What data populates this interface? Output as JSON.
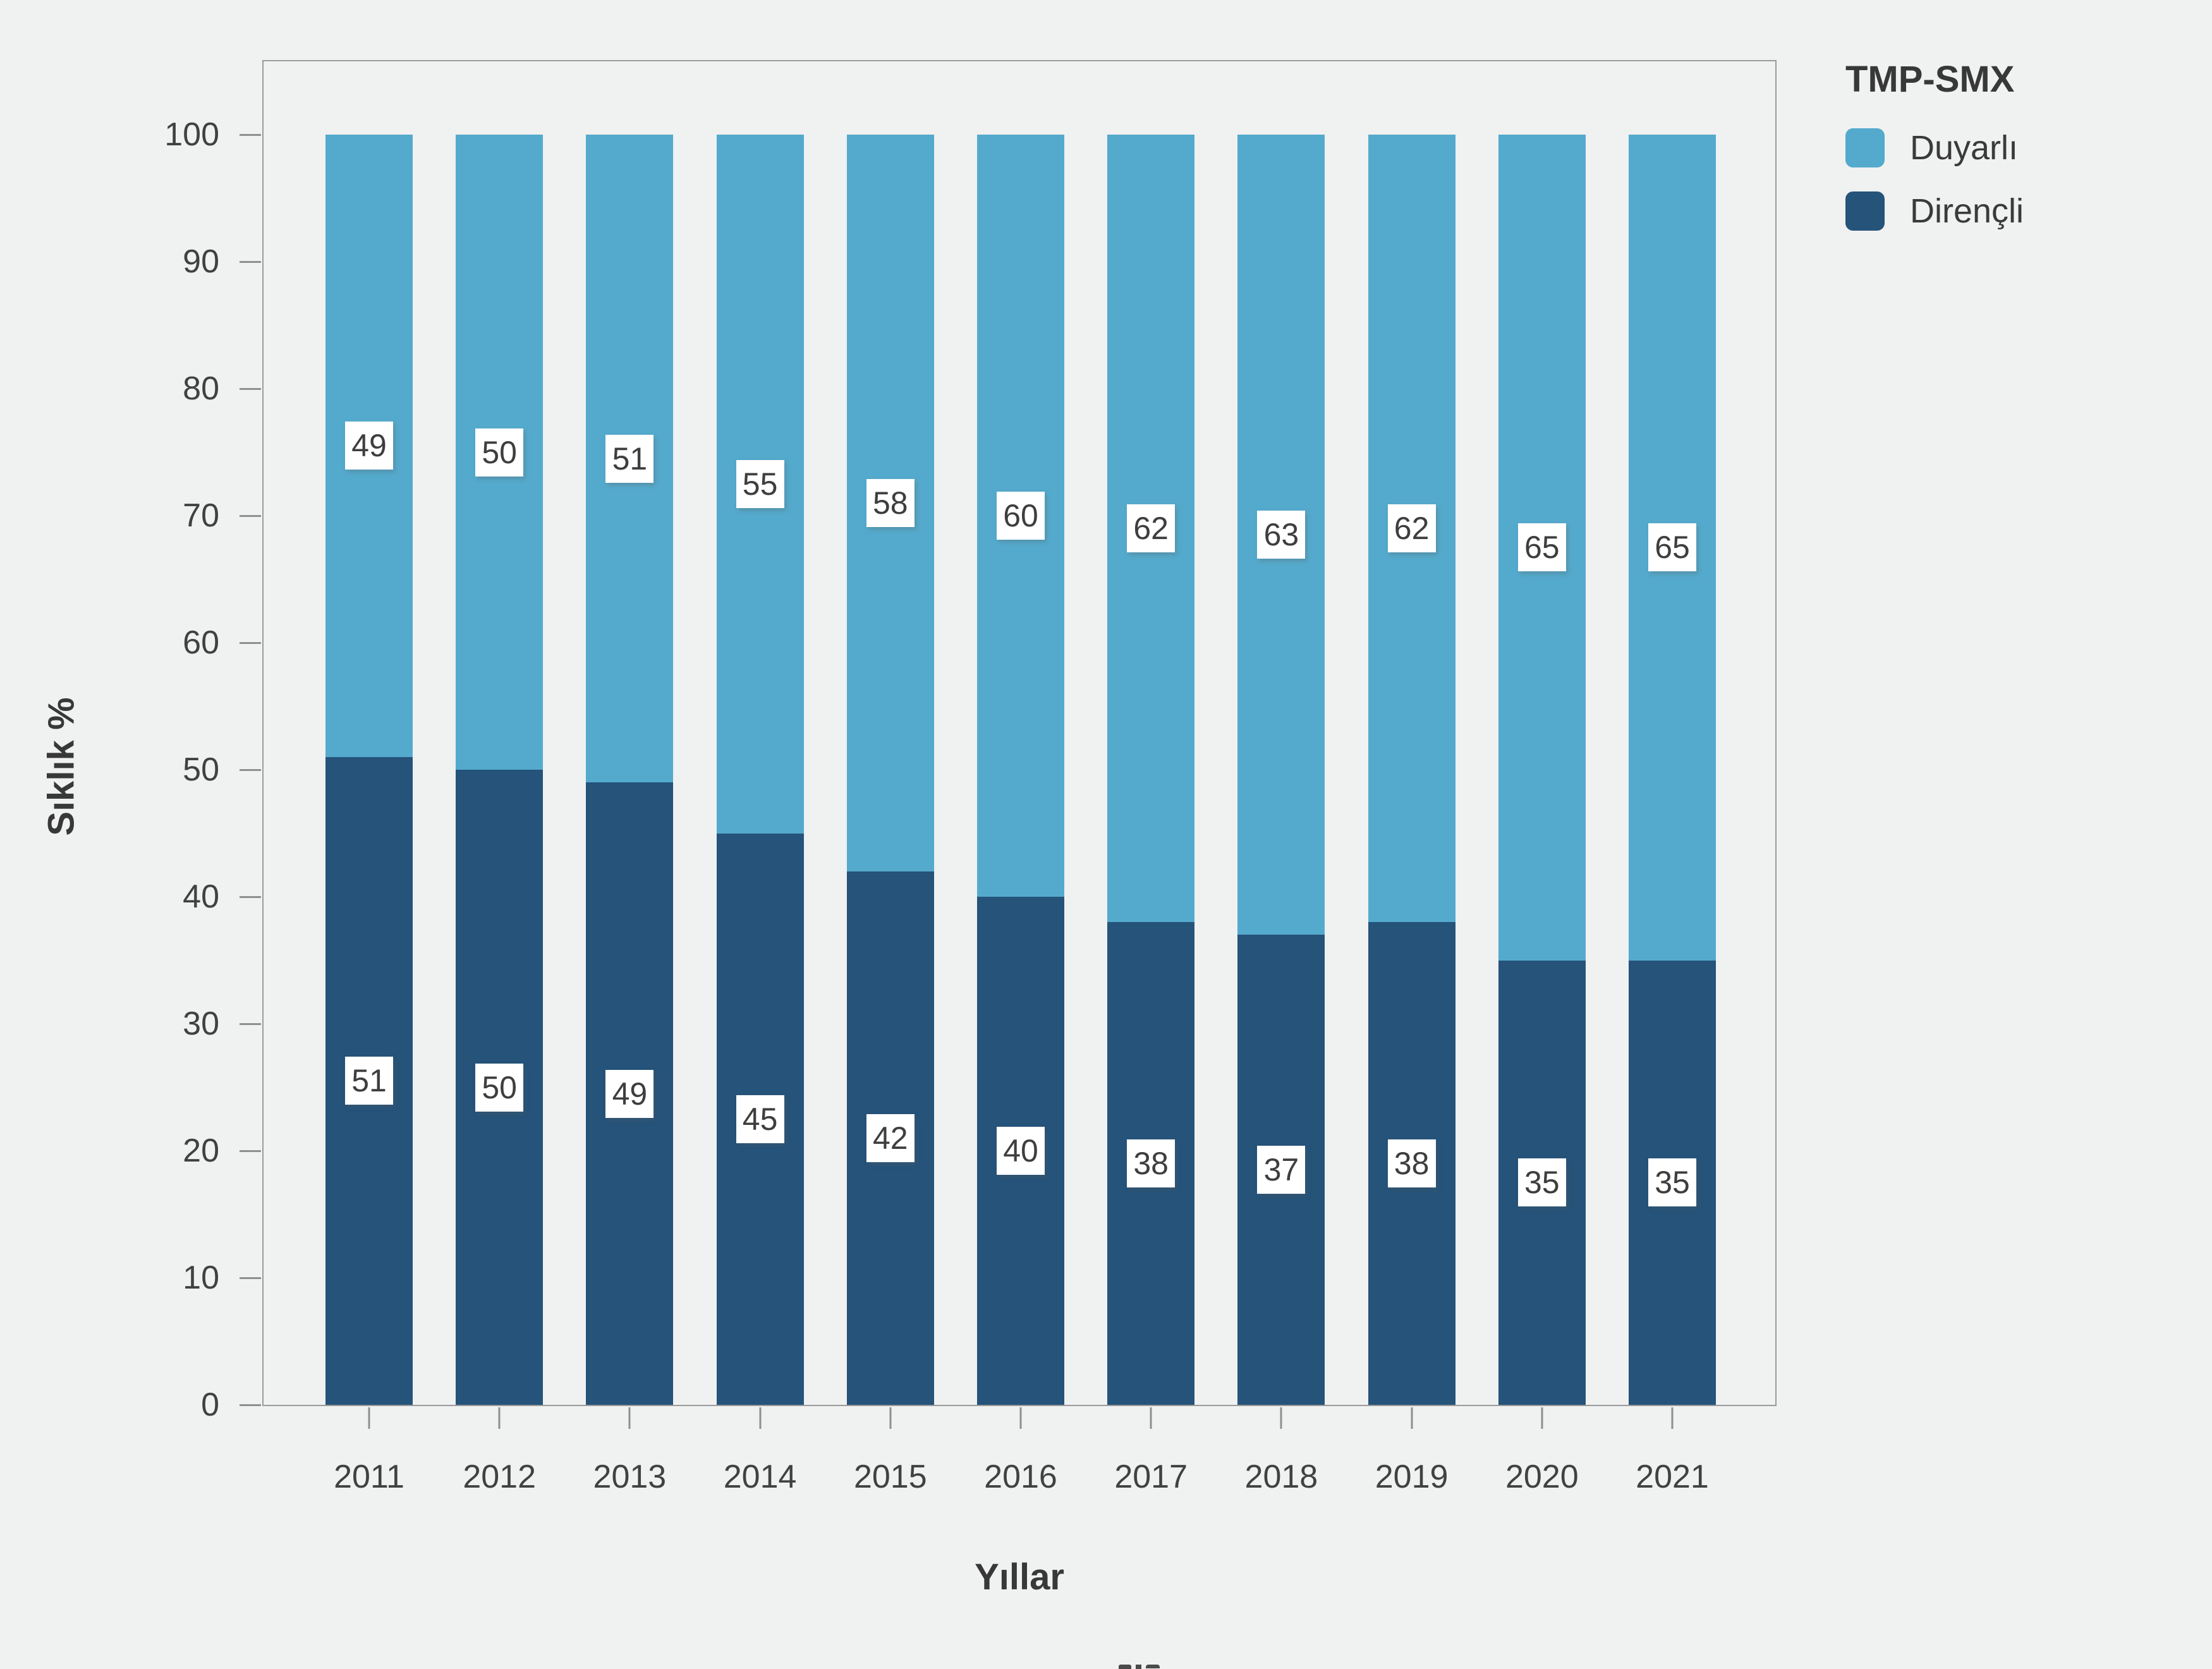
{
  "chart_data": {
    "type": "bar",
    "stacked": true,
    "percent": true,
    "title": "",
    "xlabel": "Yıllar",
    "ylabel": "Sıklık %",
    "ylim": [
      0,
      100
    ],
    "yticks": [
      0,
      10,
      20,
      30,
      40,
      50,
      60,
      70,
      80,
      90,
      100
    ],
    "categories": [
      "2011",
      "2012",
      "2013",
      "2014",
      "2015",
      "2016",
      "2017",
      "2018",
      "2019",
      "2020",
      "2021"
    ],
    "series": [
      {
        "name": "Duyarlı",
        "color": "#54AACD",
        "stack_position": "top",
        "values": [
          49,
          50,
          51,
          55,
          58,
          60,
          62,
          63,
          62,
          65,
          65
        ]
      },
      {
        "name": "Dirençli",
        "color": "#25537A",
        "stack_position": "bottom",
        "values": [
          51,
          50,
          49,
          45,
          42,
          40,
          38,
          37,
          38,
          35,
          35
        ]
      }
    ],
    "legend_position": "right",
    "grid": false,
    "bar_value_labels": true
  },
  "legend": {
    "title": "TMP-SMX",
    "items": [
      {
        "label": "Duyarlı",
        "color": "#54AACD"
      },
      {
        "label": "Dirençli",
        "color": "#25537A"
      }
    ]
  },
  "colors": {
    "background": "#F0F1F1",
    "panel_border": "#9B9B9B",
    "tick": "#8F8F8F",
    "text": "#3A3A3A",
    "value_label_box": "#FFFFFF"
  }
}
